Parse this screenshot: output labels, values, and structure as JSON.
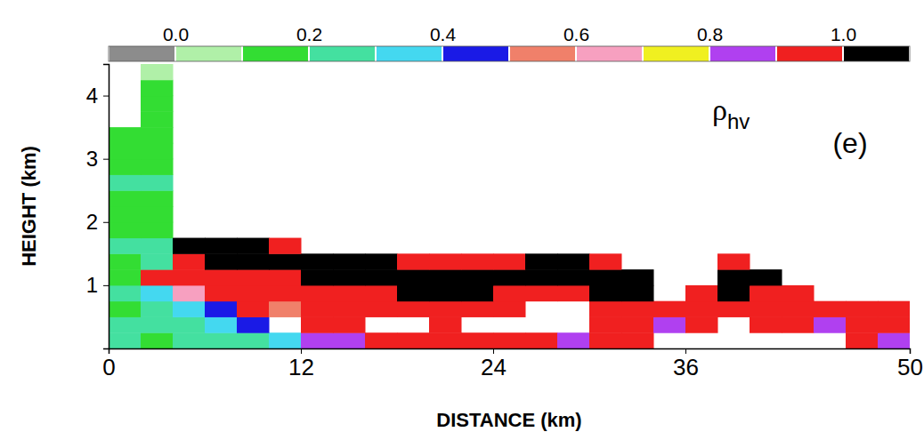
{
  "chart_data": {
    "type": "heatmap",
    "annotations": [
      "ρhv",
      "(e)"
    ],
    "x_label": "DISTANCE (km)",
    "y_label": "HEIGHT (km)",
    "xlim": [
      0,
      50
    ],
    "ylim": [
      0,
      4.5
    ],
    "xticks": [
      0,
      12,
      24,
      36,
      50
    ],
    "yticks": [
      1,
      2,
      3,
      4
    ],
    "x_edges": [
      0,
      2,
      4,
      6,
      8,
      10,
      12,
      14,
      16,
      18,
      20,
      22,
      24,
      26,
      28,
      30,
      32,
      34,
      36,
      38,
      40,
      42,
      44,
      46,
      48,
      50
    ],
    "y_edges": [
      0,
      0.25,
      0.5,
      0.75,
      1,
      1.25,
      1.5,
      1.75,
      2,
      2.25,
      2.5,
      2.75,
      3,
      3.25,
      3.5,
      3.75,
      4,
      4.25,
      4.5
    ],
    "z": [
      [
        0.25,
        0.2,
        0.3,
        0.3,
        0.25,
        0.35,
        0.8,
        0.85,
        0.9,
        0.92,
        0.9,
        0.95,
        0.93,
        0.9,
        0.85,
        0.93,
        0.9,
        null,
        null,
        null,
        null,
        null,
        null,
        0.9,
        0.88
      ],
      [
        0.3,
        0.3,
        0.25,
        0.35,
        0.4,
        null,
        0.9,
        0.9,
        null,
        null,
        0.93,
        null,
        null,
        null,
        null,
        0.92,
        0.95,
        0.85,
        0.9,
        null,
        0.9,
        0.93,
        0.85,
        0.95,
        0.93
      ],
      [
        0.2,
        0.25,
        0.35,
        0.4,
        0.9,
        0.5,
        0.92,
        0.95,
        0.93,
        0.95,
        0.97,
        0.96,
        0.94,
        null,
        null,
        0.96,
        0.97,
        0.93,
        0.94,
        0.96,
        0.95,
        0.92,
        0.95,
        0.97,
        0.92
      ],
      [
        0.3,
        0.35,
        0.7,
        0.95,
        0.95,
        0.95,
        0.96,
        0.97,
        0.97,
        1.02,
        1.02,
        1.02,
        0.98,
        0.96,
        0.97,
        1.02,
        1.03,
        null,
        0.97,
        1.02,
        0.97,
        0.9,
        null,
        null,
        null
      ],
      [
        0.15,
        0.9,
        0.97,
        0.97,
        0.97,
        0.97,
        1.02,
        1.02,
        1.03,
        1.03,
        1.03,
        1.03,
        1.03,
        1.02,
        1.03,
        1.03,
        1.02,
        null,
        null,
        1.03,
        1.02,
        null,
        null,
        null,
        null
      ],
      [
        0.2,
        0.3,
        0.98,
        1.02,
        1.02,
        1.03,
        1.03,
        1.03,
        1.02,
        0.98,
        0.97,
        0.97,
        0.97,
        1.02,
        1.02,
        0.98,
        null,
        null,
        null,
        0.98,
        null,
        null,
        null,
        null,
        null
      ],
      [
        0.25,
        0.25,
        1.02,
        1.03,
        1.03,
        0.98,
        null,
        null,
        null,
        null,
        null,
        null,
        null,
        null,
        null,
        null,
        null,
        null,
        null,
        null,
        null,
        null,
        null,
        null,
        null
      ],
      [
        0.2,
        0.2,
        null,
        null,
        null,
        null,
        null,
        null,
        null,
        null,
        null,
        null,
        null,
        null,
        null,
        null,
        null,
        null,
        null,
        null,
        null,
        null,
        null,
        null,
        null
      ],
      [
        0.15,
        0.15,
        null,
        null,
        null,
        null,
        null,
        null,
        null,
        null,
        null,
        null,
        null,
        null,
        null,
        null,
        null,
        null,
        null,
        null,
        null,
        null,
        null,
        null,
        null
      ],
      [
        0.2,
        0.2,
        null,
        null,
        null,
        null,
        null,
        null,
        null,
        null,
        null,
        null,
        null,
        null,
        null,
        null,
        null,
        null,
        null,
        null,
        null,
        null,
        null,
        null,
        null
      ],
      [
        0.25,
        0.25,
        null,
        null,
        null,
        null,
        null,
        null,
        null,
        null,
        null,
        null,
        null,
        null,
        null,
        null,
        null,
        null,
        null,
        null,
        null,
        null,
        null,
        null,
        null
      ],
      [
        0.15,
        0.2,
        null,
        null,
        null,
        null,
        null,
        null,
        null,
        null,
        null,
        null,
        null,
        null,
        null,
        null,
        null,
        null,
        null,
        null,
        null,
        null,
        null,
        null,
        null
      ],
      [
        0.2,
        0.15,
        null,
        null,
        null,
        null,
        null,
        null,
        null,
        null,
        null,
        null,
        null,
        null,
        null,
        null,
        null,
        null,
        null,
        null,
        null,
        null,
        null,
        null,
        null
      ],
      [
        0.2,
        0.2,
        null,
        null,
        null,
        null,
        null,
        null,
        null,
        null,
        null,
        null,
        null,
        null,
        null,
        null,
        null,
        null,
        null,
        null,
        null,
        null,
        null,
        null,
        null
      ],
      [
        null,
        0.15,
        null,
        null,
        null,
        null,
        null,
        null,
        null,
        null,
        null,
        null,
        null,
        null,
        null,
        null,
        null,
        null,
        null,
        null,
        null,
        null,
        null,
        null,
        null
      ],
      [
        null,
        0.2,
        null,
        null,
        null,
        null,
        null,
        null,
        null,
        null,
        null,
        null,
        null,
        null,
        null,
        null,
        null,
        null,
        null,
        null,
        null,
        null,
        null,
        null,
        null
      ],
      [
        null,
        0.15,
        null,
        null,
        null,
        null,
        null,
        null,
        null,
        null,
        null,
        null,
        null,
        null,
        null,
        null,
        null,
        null,
        null,
        null,
        null,
        null,
        null,
        null,
        null
      ],
      [
        null,
        0.1,
        null,
        null,
        null,
        null,
        null,
        null,
        null,
        null,
        null,
        null,
        null,
        null,
        null,
        null,
        null,
        null,
        null,
        null,
        null,
        null,
        null,
        null,
        null
      ]
    ],
    "colorbar": {
      "range": [
        -0.1,
        1.1
      ],
      "ticks": [
        {
          "value": 0,
          "label": "0.0"
        },
        {
          "value": 0.2,
          "label": "0.2"
        },
        {
          "value": 0.4,
          "label": "0.4"
        },
        {
          "value": 0.6,
          "label": "0.6"
        },
        {
          "value": 0.8,
          "label": "0.8"
        },
        {
          "value": 1,
          "label": "1.0"
        }
      ],
      "colors": [
        "#8c8c8c",
        "#b0f0a8",
        "#33dd33",
        "#44e0a0",
        "#44d8f0",
        "#1a1ae6",
        "#f0806a",
        "#f7a0c0",
        "#f0f020",
        "#b040f0",
        "#f02020",
        "#000000"
      ]
    }
  }
}
